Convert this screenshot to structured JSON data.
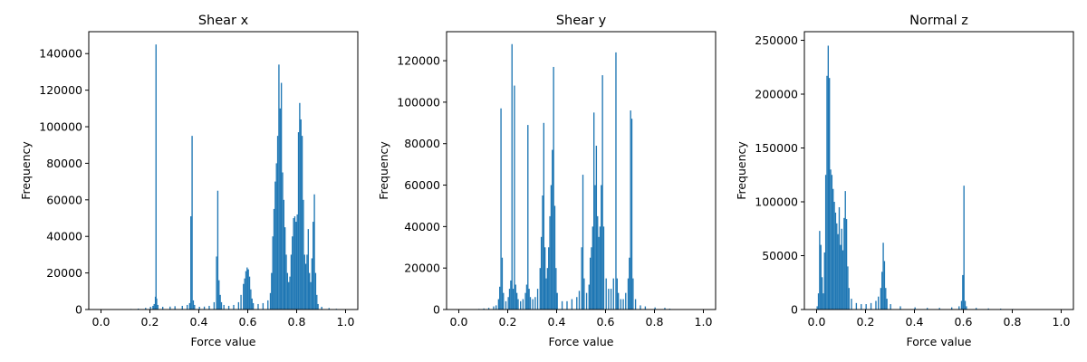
{
  "chart_data": [
    {
      "type": "bar",
      "title": "Shear x",
      "xlabel": "Force value",
      "ylabel": "Frequency",
      "xlim": [
        -0.05,
        1.05
      ],
      "ylim": [
        0,
        152000
      ],
      "xticks": [
        0.0,
        0.2,
        0.4,
        0.6,
        0.8,
        1.0
      ],
      "xtick_labels": [
        "0.0",
        "0.2",
        "0.4",
        "0.6",
        "0.8",
        "1.0"
      ],
      "yticks": [
        0,
        20000,
        40000,
        60000,
        80000,
        100000,
        120000,
        140000
      ],
      "ytick_labels": [
        "0",
        "20000",
        "40000",
        "60000",
        "80000",
        "100000",
        "120000",
        "140000"
      ],
      "color": "#1f77b4",
      "bin_width": 0.005,
      "bins": [
        [
          0.12,
          300
        ],
        [
          0.15,
          500
        ],
        [
          0.18,
          900
        ],
        [
          0.2,
          1500
        ],
        [
          0.21,
          2000
        ],
        [
          0.215,
          3000
        ],
        [
          0.22,
          7000
        ],
        [
          0.2225,
          145000
        ],
        [
          0.225,
          6000
        ],
        [
          0.23,
          2500
        ],
        [
          0.25,
          1500
        ],
        [
          0.28,
          1600
        ],
        [
          0.3,
          1800
        ],
        [
          0.33,
          2000
        ],
        [
          0.35,
          2500
        ],
        [
          0.36,
          3500
        ],
        [
          0.365,
          51000
        ],
        [
          0.37,
          95000
        ],
        [
          0.375,
          5000
        ],
        [
          0.38,
          2500
        ],
        [
          0.4,
          1500
        ],
        [
          0.42,
          1600
        ],
        [
          0.44,
          2000
        ],
        [
          0.46,
          4000
        ],
        [
          0.47,
          29000
        ],
        [
          0.475,
          65000
        ],
        [
          0.48,
          16000
        ],
        [
          0.485,
          8000
        ],
        [
          0.49,
          4000
        ],
        [
          0.5,
          2500
        ],
        [
          0.52,
          2000
        ],
        [
          0.54,
          2500
        ],
        [
          0.56,
          4000
        ],
        [
          0.57,
          8000
        ],
        [
          0.58,
          14000
        ],
        [
          0.585,
          17000
        ],
        [
          0.59,
          21000
        ],
        [
          0.595,
          23000
        ],
        [
          0.6,
          22000
        ],
        [
          0.605,
          18000
        ],
        [
          0.61,
          11000
        ],
        [
          0.615,
          6000
        ],
        [
          0.62,
          3500
        ],
        [
          0.64,
          3000
        ],
        [
          0.66,
          3500
        ],
        [
          0.68,
          5000
        ],
        [
          0.69,
          9000
        ],
        [
          0.695,
          20000
        ],
        [
          0.7,
          40000
        ],
        [
          0.705,
          55000
        ],
        [
          0.71,
          70000
        ],
        [
          0.715,
          80000
        ],
        [
          0.72,
          95000
        ],
        [
          0.725,
          134000
        ],
        [
          0.73,
          110000
        ],
        [
          0.735,
          124000
        ],
        [
          0.74,
          75000
        ],
        [
          0.745,
          60000
        ],
        [
          0.75,
          45000
        ],
        [
          0.755,
          30000
        ],
        [
          0.76,
          20000
        ],
        [
          0.765,
          15000
        ],
        [
          0.77,
          18000
        ],
        [
          0.775,
          30000
        ],
        [
          0.78,
          40000
        ],
        [
          0.785,
          50000
        ],
        [
          0.79,
          51000
        ],
        [
          0.795,
          48000
        ],
        [
          0.8,
          52000
        ],
        [
          0.805,
          97000
        ],
        [
          0.81,
          113000
        ],
        [
          0.815,
          104000
        ],
        [
          0.82,
          95000
        ],
        [
          0.825,
          60000
        ],
        [
          0.83,
          30000
        ],
        [
          0.835,
          25000
        ],
        [
          0.84,
          30000
        ],
        [
          0.845,
          44000
        ],
        [
          0.85,
          20000
        ],
        [
          0.855,
          15000
        ],
        [
          0.86,
          28000
        ],
        [
          0.865,
          48000
        ],
        [
          0.87,
          63000
        ],
        [
          0.875,
          20000
        ],
        [
          0.88,
          8000
        ],
        [
          0.885,
          3000
        ],
        [
          0.9,
          1500
        ],
        [
          0.93,
          800
        ],
        [
          0.96,
          400
        ],
        [
          1.0,
          200
        ]
      ]
    },
    {
      "type": "bar",
      "title": "Shear y",
      "xlabel": "Force value",
      "ylabel": "Frequency",
      "xlim": [
        -0.05,
        1.05
      ],
      "ylim": [
        0,
        134000
      ],
      "xticks": [
        0.0,
        0.2,
        0.4,
        0.6,
        0.8,
        1.0
      ],
      "xtick_labels": [
        "0.0",
        "0.2",
        "0.4",
        "0.6",
        "0.8",
        "1.0"
      ],
      "yticks": [
        0,
        20000,
        40000,
        60000,
        80000,
        100000,
        120000
      ],
      "ytick_labels": [
        "0",
        "20000",
        "40000",
        "60000",
        "80000",
        "100000",
        "120000"
      ],
      "color": "#1f77b4",
      "bin_width": 0.005,
      "bins": [
        [
          0.08,
          300
        ],
        [
          0.1,
          500
        ],
        [
          0.12,
          800
        ],
        [
          0.14,
          1500
        ],
        [
          0.15,
          2000
        ],
        [
          0.16,
          5000
        ],
        [
          0.165,
          11000
        ],
        [
          0.17,
          97000
        ],
        [
          0.175,
          25000
        ],
        [
          0.18,
          8000
        ],
        [
          0.19,
          4000
        ],
        [
          0.2,
          6000
        ],
        [
          0.205,
          10000
        ],
        [
          0.21,
          14000
        ],
        [
          0.215,
          128000
        ],
        [
          0.22,
          10000
        ],
        [
          0.225,
          108000
        ],
        [
          0.23,
          12000
        ],
        [
          0.235,
          8000
        ],
        [
          0.24,
          5000
        ],
        [
          0.25,
          4000
        ],
        [
          0.26,
          5000
        ],
        [
          0.27,
          8000
        ],
        [
          0.275,
          12000
        ],
        [
          0.28,
          89000
        ],
        [
          0.285,
          10000
        ],
        [
          0.29,
          6000
        ],
        [
          0.3,
          5000
        ],
        [
          0.31,
          6000
        ],
        [
          0.32,
          10000
        ],
        [
          0.33,
          20000
        ],
        [
          0.335,
          35000
        ],
        [
          0.34,
          55000
        ],
        [
          0.345,
          90000
        ],
        [
          0.35,
          30000
        ],
        [
          0.355,
          15000
        ],
        [
          0.36,
          20000
        ],
        [
          0.365,
          30000
        ],
        [
          0.37,
          45000
        ],
        [
          0.375,
          60000
        ],
        [
          0.38,
          77000
        ],
        [
          0.385,
          117000
        ],
        [
          0.39,
          50000
        ],
        [
          0.395,
          20000
        ],
        [
          0.4,
          8000
        ],
        [
          0.42,
          4000
        ],
        [
          0.44,
          4000
        ],
        [
          0.46,
          5000
        ],
        [
          0.48,
          6000
        ],
        [
          0.49,
          9000
        ],
        [
          0.5,
          30000
        ],
        [
          0.505,
          65000
        ],
        [
          0.51,
          15000
        ],
        [
          0.52,
          8000
        ],
        [
          0.53,
          12000
        ],
        [
          0.535,
          25000
        ],
        [
          0.54,
          30000
        ],
        [
          0.545,
          40000
        ],
        [
          0.55,
          95000
        ],
        [
          0.555,
          60000
        ],
        [
          0.56,
          79000
        ],
        [
          0.565,
          45000
        ],
        [
          0.57,
          35000
        ],
        [
          0.575,
          40000
        ],
        [
          0.58,
          60000
        ],
        [
          0.585,
          113000
        ],
        [
          0.59,
          40000
        ],
        [
          0.6,
          15000
        ],
        [
          0.61,
          10000
        ],
        [
          0.62,
          10000
        ],
        [
          0.63,
          15000
        ],
        [
          0.64,
          124000
        ],
        [
          0.645,
          15000
        ],
        [
          0.65,
          8000
        ],
        [
          0.66,
          5000
        ],
        [
          0.67,
          5000
        ],
        [
          0.68,
          8000
        ],
        [
          0.69,
          15000
        ],
        [
          0.695,
          25000
        ],
        [
          0.7,
          96000
        ],
        [
          0.705,
          92000
        ],
        [
          0.71,
          15000
        ],
        [
          0.72,
          5000
        ],
        [
          0.74,
          2000
        ],
        [
          0.76,
          1500
        ],
        [
          0.8,
          1000
        ],
        [
          0.84,
          800
        ],
        [
          0.86,
          400
        ]
      ]
    },
    {
      "type": "bar",
      "title": "Normal z",
      "xlabel": "Force value",
      "ylabel": "Frequency",
      "xlim": [
        -0.05,
        1.05
      ],
      "ylim": [
        0,
        258000
      ],
      "xticks": [
        0.0,
        0.2,
        0.4,
        0.6,
        0.8,
        1.0
      ],
      "xtick_labels": [
        "0.0",
        "0.2",
        "0.4",
        "0.6",
        "0.8",
        "1.0"
      ],
      "yticks": [
        0,
        50000,
        100000,
        150000,
        200000,
        250000
      ],
      "ytick_labels": [
        "0",
        "50000",
        "100000",
        "150000",
        "200000",
        "250000"
      ],
      "color": "#1f77b4",
      "bin_width": 0.005,
      "bins": [
        [
          0.0,
          3000
        ],
        [
          0.005,
          15000
        ],
        [
          0.01,
          73000
        ],
        [
          0.015,
          60000
        ],
        [
          0.02,
          30000
        ],
        [
          0.025,
          15000
        ],
        [
          0.03,
          53000
        ],
        [
          0.035,
          125000
        ],
        [
          0.04,
          217000
        ],
        [
          0.045,
          245000
        ],
        [
          0.05,
          215000
        ],
        [
          0.055,
          130000
        ],
        [
          0.06,
          125000
        ],
        [
          0.065,
          112000
        ],
        [
          0.07,
          100000
        ],
        [
          0.075,
          90000
        ],
        [
          0.08,
          80000
        ],
        [
          0.085,
          70000
        ],
        [
          0.09,
          95000
        ],
        [
          0.095,
          60000
        ],
        [
          0.1,
          75000
        ],
        [
          0.105,
          55000
        ],
        [
          0.11,
          85000
        ],
        [
          0.115,
          110000
        ],
        [
          0.12,
          84000
        ],
        [
          0.125,
          40000
        ],
        [
          0.13,
          20000
        ],
        [
          0.14,
          10000
        ],
        [
          0.16,
          6000
        ],
        [
          0.18,
          5000
        ],
        [
          0.2,
          5000
        ],
        [
          0.22,
          6000
        ],
        [
          0.24,
          8000
        ],
        [
          0.25,
          12000
        ],
        [
          0.26,
          20000
        ],
        [
          0.265,
          35000
        ],
        [
          0.27,
          62000
        ],
        [
          0.275,
          45000
        ],
        [
          0.28,
          20000
        ],
        [
          0.285,
          10000
        ],
        [
          0.3,
          5000
        ],
        [
          0.34,
          3000
        ],
        [
          0.4,
          2000
        ],
        [
          0.45,
          1500
        ],
        [
          0.5,
          1500
        ],
        [
          0.55,
          2000
        ],
        [
          0.58,
          3000
        ],
        [
          0.59,
          8000
        ],
        [
          0.595,
          32000
        ],
        [
          0.6,
          115000
        ],
        [
          0.605,
          8000
        ],
        [
          0.61,
          3000
        ],
        [
          0.65,
          1500
        ],
        [
          0.7,
          1000
        ],
        [
          0.75,
          800
        ],
        [
          0.8,
          500
        ]
      ]
    }
  ]
}
